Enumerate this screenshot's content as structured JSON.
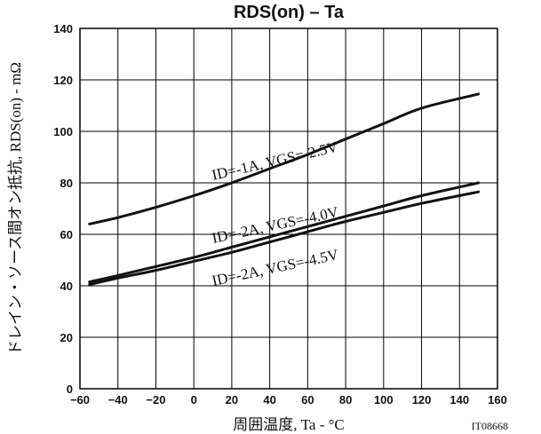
{
  "chart_data": {
    "type": "line",
    "title": "RDS(on) – Ta",
    "xlabel": "周囲温度, Ta - °C",
    "ylabel": "ドレイン・ソース間オン抵抗, RDS(on) - mΩ",
    "figure_code": "IT08668",
    "xlim": [
      -60,
      160
    ],
    "ylim": [
      0,
      140
    ],
    "xticks": [
      -60,
      -40,
      -20,
      0,
      20,
      40,
      60,
      80,
      100,
      120,
      140,
      160
    ],
    "yticks": [
      0,
      20,
      40,
      60,
      80,
      100,
      120,
      140
    ],
    "grid": true,
    "series": [
      {
        "name": "ID=-1A, VGS=-2.5V",
        "x": [
          -55,
          -40,
          -20,
          0,
          20,
          40,
          60,
          80,
          100,
          120,
          150
        ],
        "y": [
          64,
          66.5,
          70.5,
          75,
          80,
          85.5,
          91,
          97,
          103,
          109,
          114.5
        ]
      },
      {
        "name": "ID=-2A, VGS=-4.0V",
        "x": [
          -55,
          -40,
          -20,
          0,
          20,
          40,
          60,
          80,
          100,
          120,
          150
        ],
        "y": [
          41.5,
          44,
          47.5,
          51,
          55,
          59,
          63,
          67,
          71,
          75,
          80
        ]
      },
      {
        "name": "ID=-2A, VGS=-4.5V",
        "x": [
          -55,
          -40,
          -20,
          0,
          20,
          40,
          60,
          80,
          100,
          120,
          150
        ],
        "y": [
          40.5,
          43,
          46,
          49.5,
          53,
          57,
          61,
          65,
          68.5,
          72,
          76.5
        ]
      }
    ]
  }
}
